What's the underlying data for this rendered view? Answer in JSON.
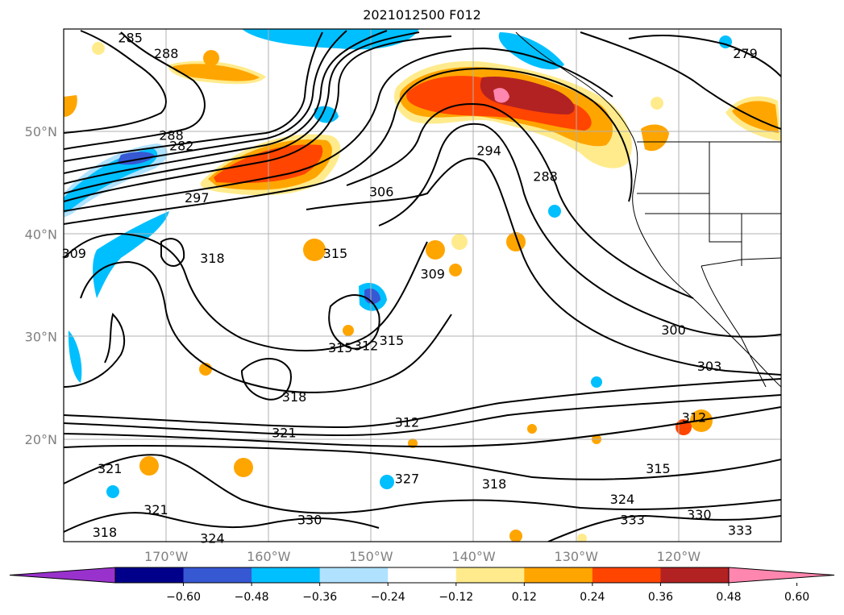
{
  "title": "2021012500 F012",
  "lat_labels": [
    {
      "text": "50°N",
      "lat": 50
    },
    {
      "text": "40°N",
      "lat": 40
    },
    {
      "text": "30°N",
      "lat": 30
    },
    {
      "text": "20°N",
      "lat": 20
    }
  ],
  "lon_labels": [
    {
      "text": "170°W",
      "lon": -170
    },
    {
      "text": "160°W",
      "lon": -160
    },
    {
      "text": "150°W",
      "lon": -150
    },
    {
      "text": "140°W",
      "lon": -140
    },
    {
      "text": "130°W",
      "lon": -130
    },
    {
      "text": "120°W",
      "lon": -120
    }
  ],
  "map_extent": {
    "lon_min": -180,
    "lon_max": -110,
    "lat_min": 10,
    "lat_max": 60
  },
  "contour_labels": [
    {
      "text": "285",
      "lon": -173.5,
      "lat": 59.0
    },
    {
      "text": "288",
      "lon": -170.0,
      "lat": 57.5
    },
    {
      "text": "288",
      "lon": -169.5,
      "lat": 49.5
    },
    {
      "text": "282",
      "lon": -168.5,
      "lat": 48.5
    },
    {
      "text": "297",
      "lon": -167.0,
      "lat": 43.4
    },
    {
      "text": "306",
      "lon": -149.0,
      "lat": 44.0
    },
    {
      "text": "294",
      "lon": -138.5,
      "lat": 48.0
    },
    {
      "text": "288",
      "lon": -133.0,
      "lat": 45.5
    },
    {
      "text": "279",
      "lon": -113.5,
      "lat": 57.5
    },
    {
      "text": "309",
      "lon": -179.0,
      "lat": 38.0
    },
    {
      "text": "318",
      "lon": -165.5,
      "lat": 37.5
    },
    {
      "text": "315",
      "lon": -153.5,
      "lat": 38.0
    },
    {
      "text": "309",
      "lon": -144.0,
      "lat": 36.0
    },
    {
      "text": "300",
      "lon": -120.5,
      "lat": 30.5
    },
    {
      "text": "303",
      "lon": -117.0,
      "lat": 27.0
    },
    {
      "text": "315",
      "lon": -153.0,
      "lat": 28.8
    },
    {
      "text": "312",
      "lon": -150.5,
      "lat": 29.0
    },
    {
      "text": "315",
      "lon": -148.0,
      "lat": 29.5
    },
    {
      "text": "318",
      "lon": -157.5,
      "lat": 24.0
    },
    {
      "text": "312",
      "lon": -146.5,
      "lat": 21.5
    },
    {
      "text": "321",
      "lon": -158.5,
      "lat": 20.5
    },
    {
      "text": "312",
      "lon": -118.5,
      "lat": 22.0
    },
    {
      "text": "327",
      "lon": -146.5,
      "lat": 16.0
    },
    {
      "text": "318",
      "lon": -138.0,
      "lat": 15.5
    },
    {
      "text": "315",
      "lon": -122.0,
      "lat": 17.0
    },
    {
      "text": "321",
      "lon": -175.5,
      "lat": 17.0
    },
    {
      "text": "324",
      "lon": -125.5,
      "lat": 14.0
    },
    {
      "text": "321",
      "lon": -171.0,
      "lat": 13.0
    },
    {
      "text": "330",
      "lon": -156.0,
      "lat": 12.0
    },
    {
      "text": "333",
      "lon": -124.5,
      "lat": 12.0
    },
    {
      "text": "330",
      "lon": -118.0,
      "lat": 12.5
    },
    {
      "text": "333",
      "lon": -114.0,
      "lat": 11.0
    },
    {
      "text": "318",
      "lon": -176.0,
      "lat": 10.8
    },
    {
      "text": "324",
      "lon": -165.5,
      "lat": 10.2
    }
  ],
  "colorbar": {
    "colors": [
      "#9932cc",
      "#00008b",
      "#3658d3",
      "#00bfff",
      "#b0e2ff",
      "#ffffff",
      "#ffeb8c",
      "#ffa500",
      "#ff4500",
      "#b22222",
      "#ff86ae"
    ],
    "ticks": [
      "−0.60",
      "−0.48",
      "−0.36",
      "−0.24",
      "−0.12",
      "0.12",
      "0.24",
      "0.36",
      "0.48",
      "0.60"
    ]
  },
  "shading_colors": {
    "pos_light": "#ffeb8c",
    "pos_orange": "#ffa500",
    "pos_red": "#ff4500",
    "pos_darkred": "#b22222",
    "pos_pink": "#ff86ae",
    "neg_light": "#b0e2ff",
    "neg_cyan": "#00bfff",
    "neg_blue": "#3658d3"
  }
}
